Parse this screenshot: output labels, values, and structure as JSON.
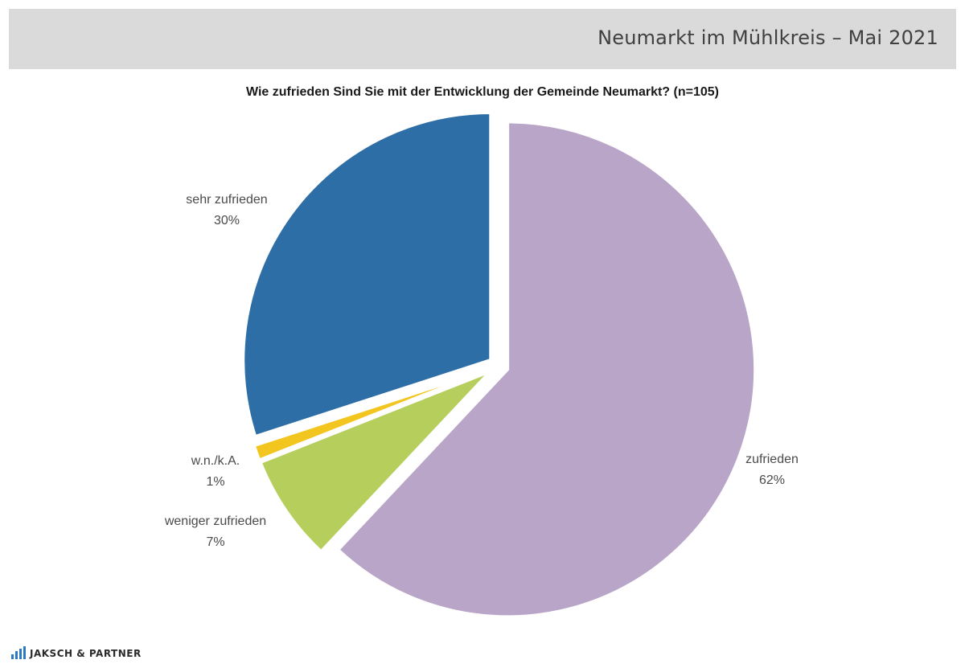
{
  "header": {
    "title": "Neumarkt im Mühlkreis – Mai 2021"
  },
  "footer": {
    "logo_text": "JAKSCH & PARTNER",
    "logo_color": "#2e79c4"
  },
  "chart_data": {
    "type": "pie",
    "title": "Wie zufrieden Sind Sie mit der Entwicklung der Gemeinde Neumarkt? (n=105)",
    "slices": [
      {
        "label": "zufrieden",
        "value": 62,
        "value_label": "62%",
        "color": "#b9a5c8"
      },
      {
        "label": "weniger zufrieden",
        "value": 7,
        "value_label": "7%",
        "color": "#b5ce5c"
      },
      {
        "label": "w.n./k.A.",
        "value": 1,
        "value_label": "1%",
        "color": "#f2c51f"
      },
      {
        "label": "sehr zufrieden",
        "value": 30,
        "value_label": "30%",
        "color": "#2e6ea6"
      }
    ]
  }
}
